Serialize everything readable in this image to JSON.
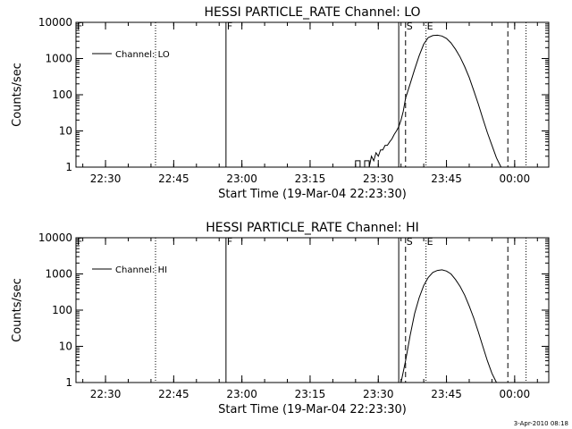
{
  "footer_timestamp": "3-Apr-2010 08:18",
  "chart_data": [
    {
      "type": "line",
      "title": "HESSI PARTICLE_RATE Channel: LO",
      "xlabel": "Start Time (19-Mar-04 22:23:30)",
      "ylabel": "Counts/sec",
      "yscale": "log",
      "ylim": [
        1,
        10000
      ],
      "xlim": [
        "22:23:30",
        "00:07:30"
      ],
      "x_ticks": [
        "22:30",
        "22:45",
        "23:00",
        "23:15",
        "23:30",
        "23:45",
        "00:00"
      ],
      "y_ticks": [
        "1",
        "10",
        "100",
        "1000",
        "10000"
      ],
      "legend": {
        "position": "top-left",
        "entries": [
          "Channel: LO"
        ]
      },
      "markers": [
        {
          "label": "F",
          "time": "22:23:30",
          "style": "dotted"
        },
        {
          "label": "",
          "time": "22:41:00",
          "style": "dotted"
        },
        {
          "label": "F",
          "time": "22:56:30",
          "style": "solid"
        },
        {
          "label": "",
          "time": "23:34:30",
          "style": "solid"
        },
        {
          "label": "S",
          "time": "23:36:00",
          "style": "dashed"
        },
        {
          "label": "E",
          "time": "23:40:30",
          "style": "dotted"
        },
        {
          "label": "",
          "time": "23:58:30",
          "style": "dashed"
        },
        {
          "label": "",
          "time": "00:02:30",
          "style": "dotted"
        }
      ],
      "series": [
        {
          "x": [
            "23:25:00",
            "23:25:00",
            "23:26:00",
            "23:26:00",
            "23:27:00",
            "23:27:00",
            "23:28:00",
            "23:28:00",
            "23:28:30",
            "23:29:00",
            "23:29:30",
            "23:30:00",
            "23:30:30",
            "23:31:00",
            "23:31:30",
            "23:32:00",
            "23:32:30",
            "23:33:00",
            "23:33:30",
            "23:34:00",
            "23:34:30",
            "23:35:00",
            "23:35:30",
            "23:36:00",
            "23:37:00",
            "23:38:00",
            "23:39:00",
            "23:40:00",
            "23:41:00",
            "23:42:00",
            "23:43:00",
            "23:44:00",
            "23:45:00",
            "23:46:00",
            "23:47:00",
            "23:48:00",
            "23:49:00",
            "23:50:00",
            "23:51:00",
            "23:52:00",
            "23:53:00",
            "23:54:00",
            "23:55:00",
            "23:56:00",
            "23:57:00"
          ],
          "y": [
            1,
            1.5,
            1.5,
            1,
            1,
            1.5,
            1.5,
            1,
            2,
            1.5,
            2.5,
            2,
            3,
            3,
            4,
            4,
            5,
            6,
            8,
            10,
            13,
            20,
            35,
            80,
            200,
            500,
            1200,
            2500,
            3800,
            4300,
            4400,
            4200,
            3600,
            2700,
            1800,
            1100,
            600,
            300,
            130,
            55,
            22,
            9,
            4,
            1.8,
            1
          ]
        }
      ]
    },
    {
      "type": "line",
      "title": "HESSI PARTICLE_RATE Channel: HI",
      "xlabel": "Start Time (19-Mar-04 22:23:30)",
      "ylabel": "Counts/sec",
      "yscale": "log",
      "ylim": [
        1,
        10000
      ],
      "xlim": [
        "22:23:30",
        "00:07:30"
      ],
      "x_ticks": [
        "22:30",
        "22:45",
        "23:00",
        "23:15",
        "23:30",
        "23:45",
        "00:00"
      ],
      "y_ticks": [
        "1",
        "10",
        "100",
        "1000",
        "10000"
      ],
      "legend": {
        "position": "top-left",
        "entries": [
          "Channel: HI"
        ]
      },
      "markers": [
        {
          "label": "F",
          "time": "22:23:30",
          "style": "dotted"
        },
        {
          "label": "",
          "time": "22:41:00",
          "style": "dotted"
        },
        {
          "label": "F",
          "time": "22:56:30",
          "style": "solid"
        },
        {
          "label": "",
          "time": "23:34:30",
          "style": "solid"
        },
        {
          "label": "S",
          "time": "23:36:00",
          "style": "dashed"
        },
        {
          "label": "E",
          "time": "23:40:30",
          "style": "dotted"
        },
        {
          "label": "",
          "time": "23:58:30",
          "style": "dashed"
        },
        {
          "label": "",
          "time": "00:02:30",
          "style": "dotted"
        }
      ],
      "series": [
        {
          "x": [
            "23:35:00",
            "23:36:00",
            "23:37:00",
            "23:38:00",
            "23:39:00",
            "23:40:00",
            "23:41:00",
            "23:42:00",
            "23:43:00",
            "23:44:00",
            "23:45:00",
            "23:46:00",
            "23:47:00",
            "23:48:00",
            "23:49:00",
            "23:50:00",
            "23:51:00",
            "23:52:00",
            "23:53:00",
            "23:54:00",
            "23:55:00",
            "23:56:00"
          ],
          "y": [
            1,
            4,
            20,
            80,
            220,
            480,
            800,
            1100,
            1250,
            1300,
            1200,
            1000,
            700,
            450,
            260,
            130,
            60,
            25,
            10,
            4,
            1.8,
            1
          ]
        }
      ]
    }
  ]
}
